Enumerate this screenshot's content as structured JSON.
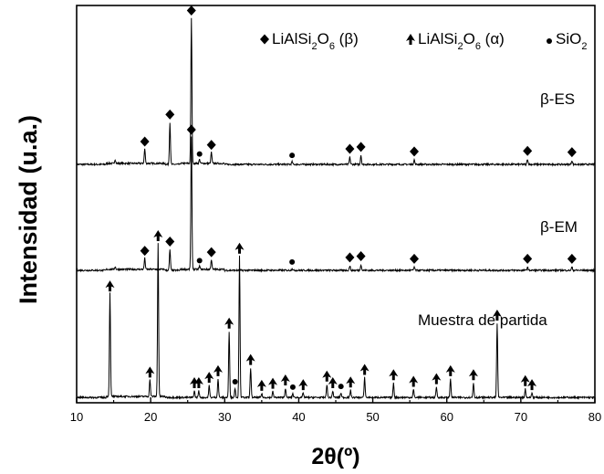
{
  "chart_data": {
    "type": "line",
    "xlabel": "2θ(º)",
    "ylabel": "Intensidad (u.a.)",
    "xlim": [
      10,
      80
    ],
    "x_ticks": [
      10,
      20,
      30,
      40,
      50,
      60,
      70,
      80
    ],
    "y_ticks": "none",
    "grid": false,
    "legend_placement": "top-right",
    "legend": [
      {
        "marker": "diamond",
        "text": "LiAlSi₂O₆ (β)"
      },
      {
        "marker": "spade",
        "text": "LiAlSi₂O₆ (α)"
      },
      {
        "marker": "circle",
        "text": "SiO₂"
      }
    ],
    "series": [
      {
        "name": "β-ES",
        "baseline": 3.6,
        "peaks": [
          {
            "x": 15.2,
            "h": 0.06,
            "m": null
          },
          {
            "x": 19.2,
            "h": 0.22,
            "m": "diamond"
          },
          {
            "x": 22.6,
            "h": 0.63,
            "m": "diamond"
          },
          {
            "x": 25.5,
            "h": 2.2,
            "m": "diamond"
          },
          {
            "x": 26.6,
            "h": 0.06,
            "m": "circle"
          },
          {
            "x": 28.2,
            "h": 0.17,
            "m": "diamond"
          },
          {
            "x": 39.1,
            "h": 0.04,
            "m": "circle"
          },
          {
            "x": 46.9,
            "h": 0.11,
            "m": "diamond"
          },
          {
            "x": 48.4,
            "h": 0.14,
            "m": "diamond"
          },
          {
            "x": 55.6,
            "h": 0.07,
            "m": "diamond"
          },
          {
            "x": 70.9,
            "h": 0.08,
            "m": "diamond"
          },
          {
            "x": 76.9,
            "h": 0.06,
            "m": "diamond"
          }
        ]
      },
      {
        "name": "β-EM",
        "baseline": 2.0,
        "peaks": [
          {
            "x": 15.2,
            "h": 0.04,
            "m": null
          },
          {
            "x": 19.2,
            "h": 0.17,
            "m": "diamond"
          },
          {
            "x": 22.6,
            "h": 0.31,
            "m": "diamond"
          },
          {
            "x": 25.5,
            "h": 2.0,
            "m": "diamond"
          },
          {
            "x": 26.6,
            "h": 0.05,
            "m": "circle"
          },
          {
            "x": 28.2,
            "h": 0.15,
            "m": "diamond"
          },
          {
            "x": 39.1,
            "h": 0.03,
            "m": "circle"
          },
          {
            "x": 46.9,
            "h": 0.07,
            "m": "diamond"
          },
          {
            "x": 48.4,
            "h": 0.09,
            "m": "diamond"
          },
          {
            "x": 55.6,
            "h": 0.05,
            "m": "diamond"
          },
          {
            "x": 70.9,
            "h": 0.05,
            "m": "diamond"
          },
          {
            "x": 76.9,
            "h": 0.05,
            "m": "diamond"
          }
        ]
      },
      {
        "name": "Muestra de partida",
        "baseline": 0.08,
        "peaks": [
          {
            "x": 14.5,
            "h": 1.56,
            "m": "spade"
          },
          {
            "x": 19.9,
            "h": 0.26,
            "m": "spade"
          },
          {
            "x": 21.0,
            "h": 2.32,
            "m": "spade"
          },
          {
            "x": 25.9,
            "h": 0.1,
            "m": "spade"
          },
          {
            "x": 26.5,
            "h": 0.1,
            "m": "spade"
          },
          {
            "x": 27.9,
            "h": 0.18,
            "m": "spade"
          },
          {
            "x": 29.1,
            "h": 0.28,
            "m": "spade"
          },
          {
            "x": 30.6,
            "h": 1.0,
            "m": "spade"
          },
          {
            "x": 31.4,
            "h": 0.14,
            "m": "circle"
          },
          {
            "x": 32.0,
            "h": 2.13,
            "m": "spade"
          },
          {
            "x": 33.5,
            "h": 0.45,
            "m": "spade"
          },
          {
            "x": 35.0,
            "h": 0.06,
            "m": "spade"
          },
          {
            "x": 36.5,
            "h": 0.09,
            "m": "spade"
          },
          {
            "x": 38.2,
            "h": 0.14,
            "m": "spade"
          },
          {
            "x": 39.2,
            "h": 0.06,
            "m": "circle"
          },
          {
            "x": 40.6,
            "h": 0.07,
            "m": "spade"
          },
          {
            "x": 43.8,
            "h": 0.2,
            "m": "spade"
          },
          {
            "x": 44.6,
            "h": 0.1,
            "m": "spade"
          },
          {
            "x": 45.7,
            "h": 0.07,
            "m": "circle"
          },
          {
            "x": 47.0,
            "h": 0.11,
            "m": "spade"
          },
          {
            "x": 48.9,
            "h": 0.3,
            "m": "spade"
          },
          {
            "x": 52.8,
            "h": 0.22,
            "m": "spade"
          },
          {
            "x": 55.5,
            "h": 0.12,
            "m": "spade"
          },
          {
            "x": 58.6,
            "h": 0.16,
            "m": "spade"
          },
          {
            "x": 60.5,
            "h": 0.28,
            "m": "spade"
          },
          {
            "x": 63.6,
            "h": 0.22,
            "m": "spade"
          },
          {
            "x": 66.8,
            "h": 1.12,
            "m": "spade"
          },
          {
            "x": 70.6,
            "h": 0.13,
            "m": "spade"
          },
          {
            "x": 71.5,
            "h": 0.07,
            "m": "spade"
          }
        ]
      }
    ]
  }
}
